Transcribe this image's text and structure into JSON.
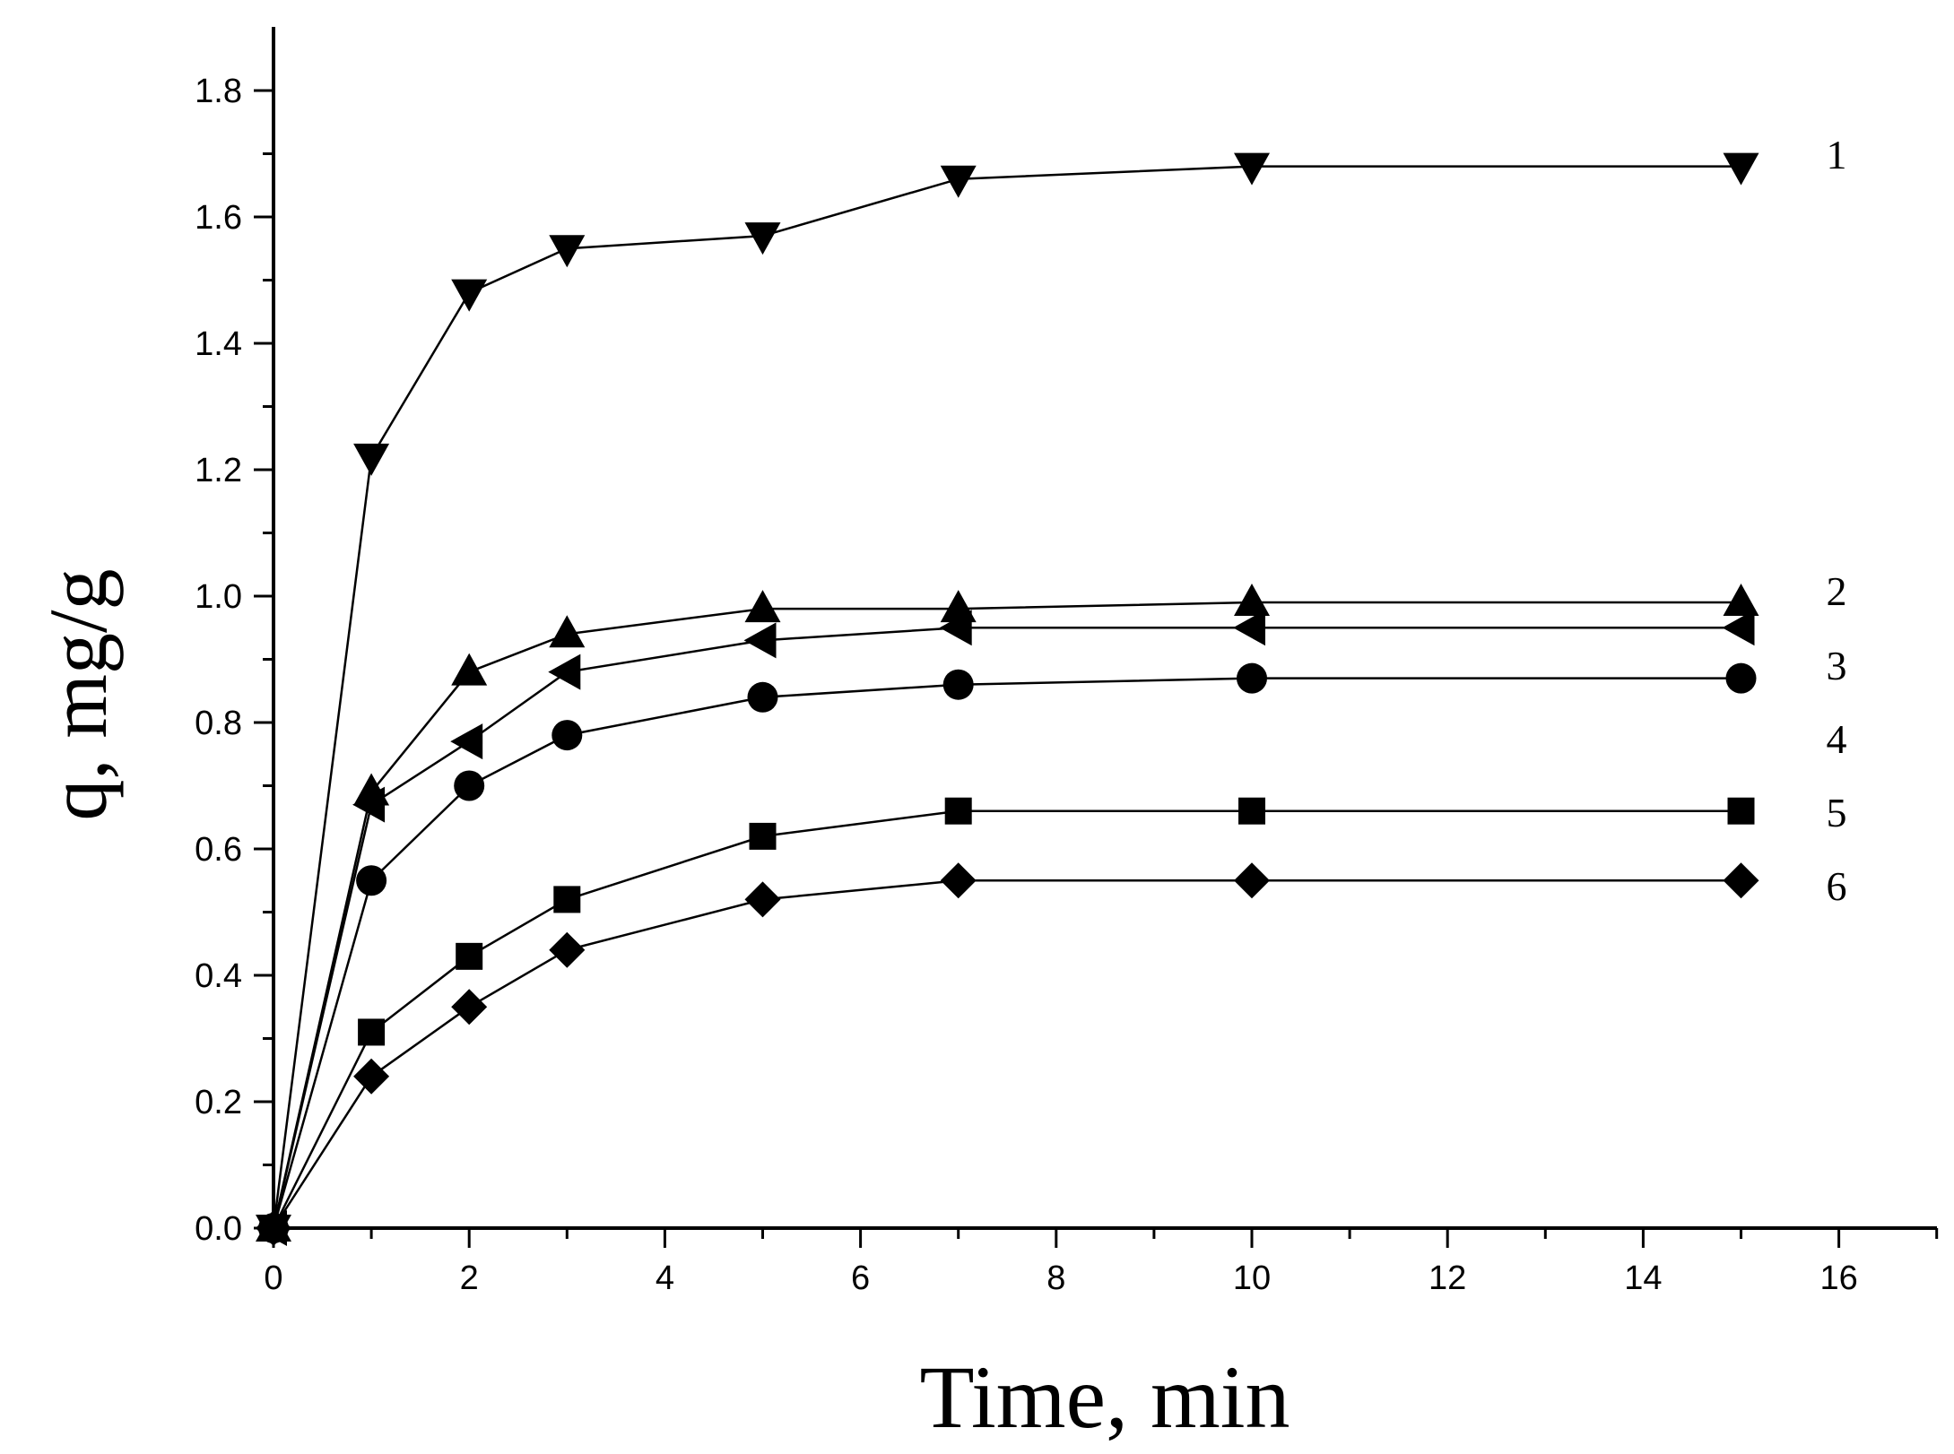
{
  "chart_data": {
    "type": "line",
    "title": "",
    "xlabel": "Time, min",
    "ylabel": "q, mg/g",
    "xlim": [
      0,
      17
    ],
    "ylim": [
      0,
      1.9
    ],
    "xticks": [
      0,
      2,
      4,
      6,
      8,
      10,
      12,
      14,
      16
    ],
    "yticks": [
      0.0,
      0.2,
      0.4,
      0.6,
      0.8,
      1.0,
      1.2,
      1.4,
      1.6,
      1.8
    ],
    "xtick_labels": [
      "0",
      "2",
      "4",
      "6",
      "8",
      "10",
      "12",
      "14",
      "16"
    ],
    "ytick_labels": [
      "0.0",
      "0.2",
      "0.4",
      "0.6",
      "0.8",
      "1.0",
      "1.2",
      "1.4",
      "1.6",
      "1.8"
    ],
    "grid": false,
    "legend": "none",
    "x": [
      0,
      1,
      2,
      3,
      5,
      7,
      10,
      15
    ],
    "series": [
      {
        "label": "1",
        "marker": "triangle-down",
        "values": [
          0,
          1.22,
          1.48,
          1.55,
          1.57,
          1.66,
          1.68,
          1.68
        ]
      },
      {
        "label": "2",
        "marker": "triangle-up",
        "values": [
          0,
          0.69,
          0.88,
          0.94,
          0.98,
          0.98,
          0.99,
          0.99
        ]
      },
      {
        "label": "3",
        "marker": "triangle-left",
        "values": [
          0,
          0.67,
          0.77,
          0.88,
          0.93,
          0.95,
          0.95,
          0.95
        ]
      },
      {
        "label": "4",
        "marker": "circle",
        "values": [
          0,
          0.55,
          0.7,
          0.78,
          0.84,
          0.86,
          0.87,
          0.87
        ]
      },
      {
        "label": "5",
        "marker": "square",
        "values": [
          0,
          0.31,
          0.43,
          0.52,
          0.62,
          0.66,
          0.66,
          0.66
        ]
      },
      {
        "label": "6",
        "marker": "diamond",
        "values": [
          0,
          0.24,
          0.35,
          0.44,
          0.52,
          0.55,
          0.55,
          0.55
        ]
      }
    ],
    "line_color": "#000000",
    "marker_color": "#000000"
  }
}
